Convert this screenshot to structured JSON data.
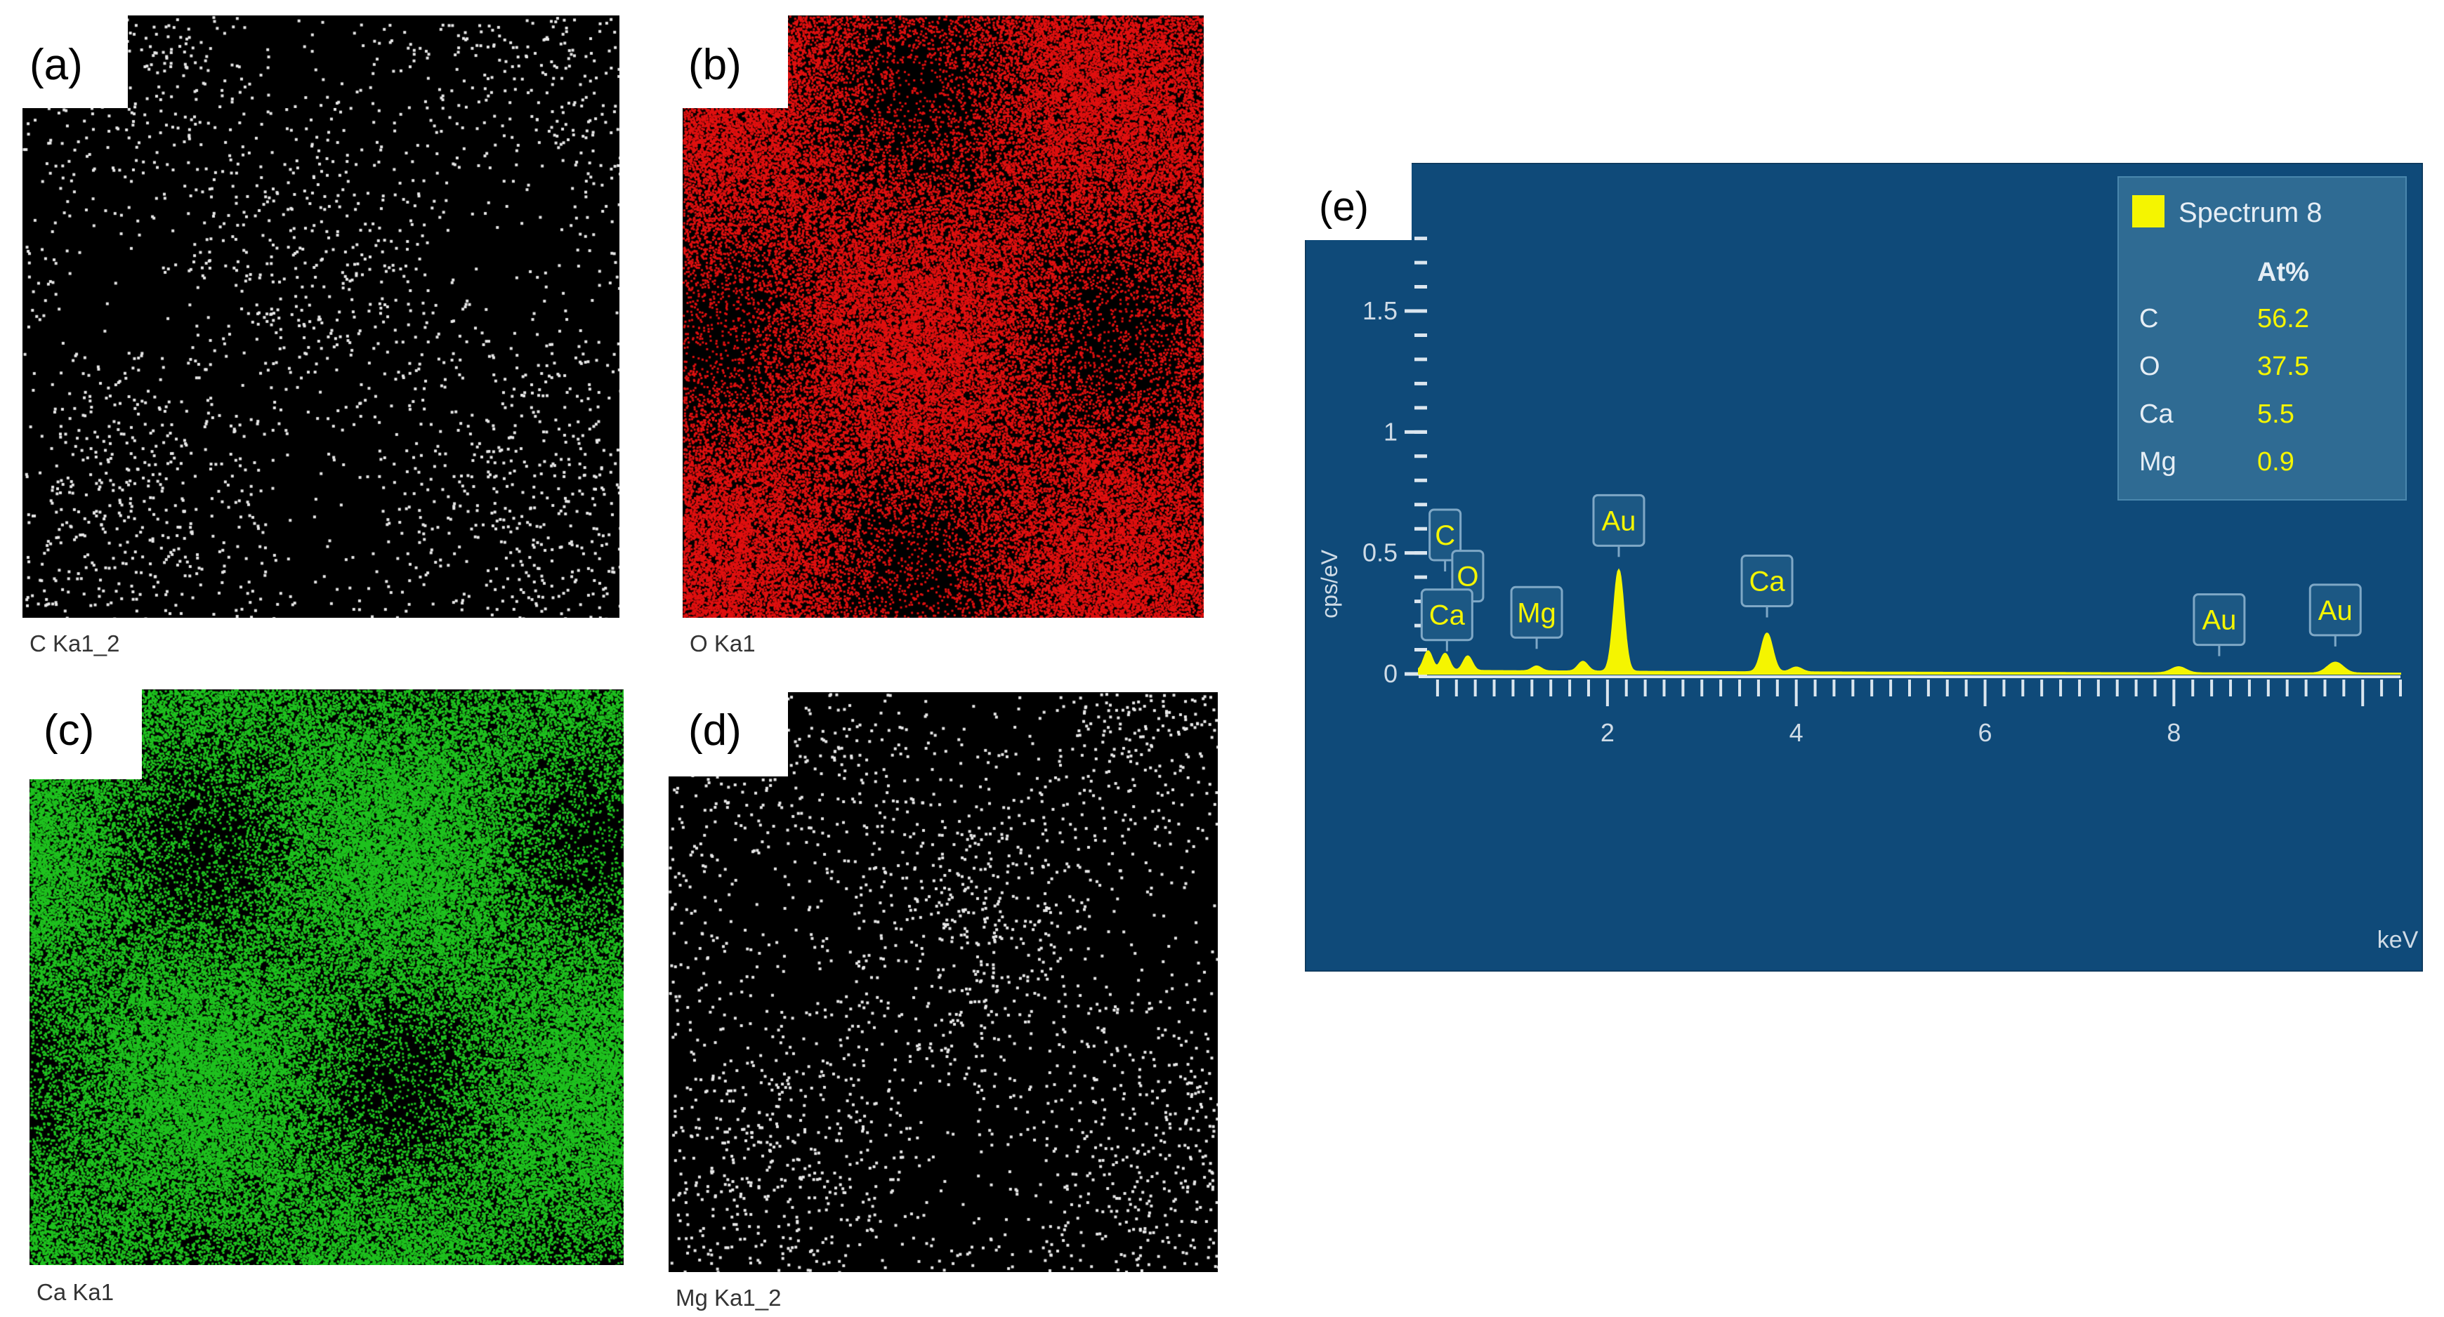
{
  "maps": [
    {
      "panel_label": "(a)",
      "caption": "C Ka1_2",
      "color": "#e8e8e8",
      "density": 0.3
    },
    {
      "panel_label": "(b)",
      "caption": "O Ka1",
      "color": "#e01010",
      "density": 0.75
    },
    {
      "panel_label": "(c)",
      "caption": "Ca Ka1",
      "color": "#1fc21f",
      "density": 0.9
    },
    {
      "panel_label": "(d)",
      "caption": "Mg Ka1_2",
      "color": "#e8e8e8",
      "density": 0.35
    }
  ],
  "spectrum": {
    "panel_label": "(e)",
    "colors": {
      "background": "#0f4a79",
      "trace": "#f5f500",
      "legend_bg": "#2f6b93",
      "text": "#e6eef5"
    },
    "chart_data": {
      "type": "area",
      "xlabel": "keV",
      "ylabel": "cps/eV",
      "xlim": [
        0,
        10.4
      ],
      "ylim": [
        0,
        1.9
      ],
      "x_ticks": [
        2,
        4,
        6,
        8
      ],
      "y_ticks": [
        0,
        0.5,
        1,
        1.5
      ],
      "y_tick_labels": [
        "0",
        "0.5",
        "1",
        "1.5"
      ],
      "series": [
        {
          "name": "Spectrum 8"
        }
      ],
      "peaks": [
        {
          "x": 0.1,
          "y": 0.08
        },
        {
          "x": 0.28,
          "y": 0.07
        },
        {
          "x": 0.52,
          "y": 0.06
        },
        {
          "x": 1.25,
          "y": 0.02
        },
        {
          "x": 1.74,
          "y": 0.04
        },
        {
          "x": 2.12,
          "y": 0.42
        },
        {
          "x": 3.69,
          "y": 0.16
        },
        {
          "x": 4.0,
          "y": 0.02
        },
        {
          "x": 8.05,
          "y": 0.025
        },
        {
          "x": 9.71,
          "y": 0.045
        }
      ],
      "baseline": 0.015,
      "peak_labels": [
        {
          "text": "C",
          "x": 0.28,
          "y": 0.47
        },
        {
          "text": "O",
          "x": 0.52,
          "y": 0.3
        },
        {
          "text": "Ca",
          "x": 0.3,
          "y": 0.14
        },
        {
          "text": "Mg",
          "x": 1.25,
          "y": 0.15
        },
        {
          "text": "Au",
          "x": 2.12,
          "y": 0.53
        },
        {
          "text": "Ca",
          "x": 3.69,
          "y": 0.28
        },
        {
          "text": "Au",
          "x": 8.48,
          "y": 0.12
        },
        {
          "text": "Au",
          "x": 9.71,
          "y": 0.16
        }
      ],
      "table": {
        "header": "At%",
        "rows": [
          {
            "element": "C",
            "value": "56.2"
          },
          {
            "element": "O",
            "value": "37.5"
          },
          {
            "element": "Ca",
            "value": "5.5"
          },
          {
            "element": "Mg",
            "value": "0.9"
          }
        ]
      }
    }
  }
}
